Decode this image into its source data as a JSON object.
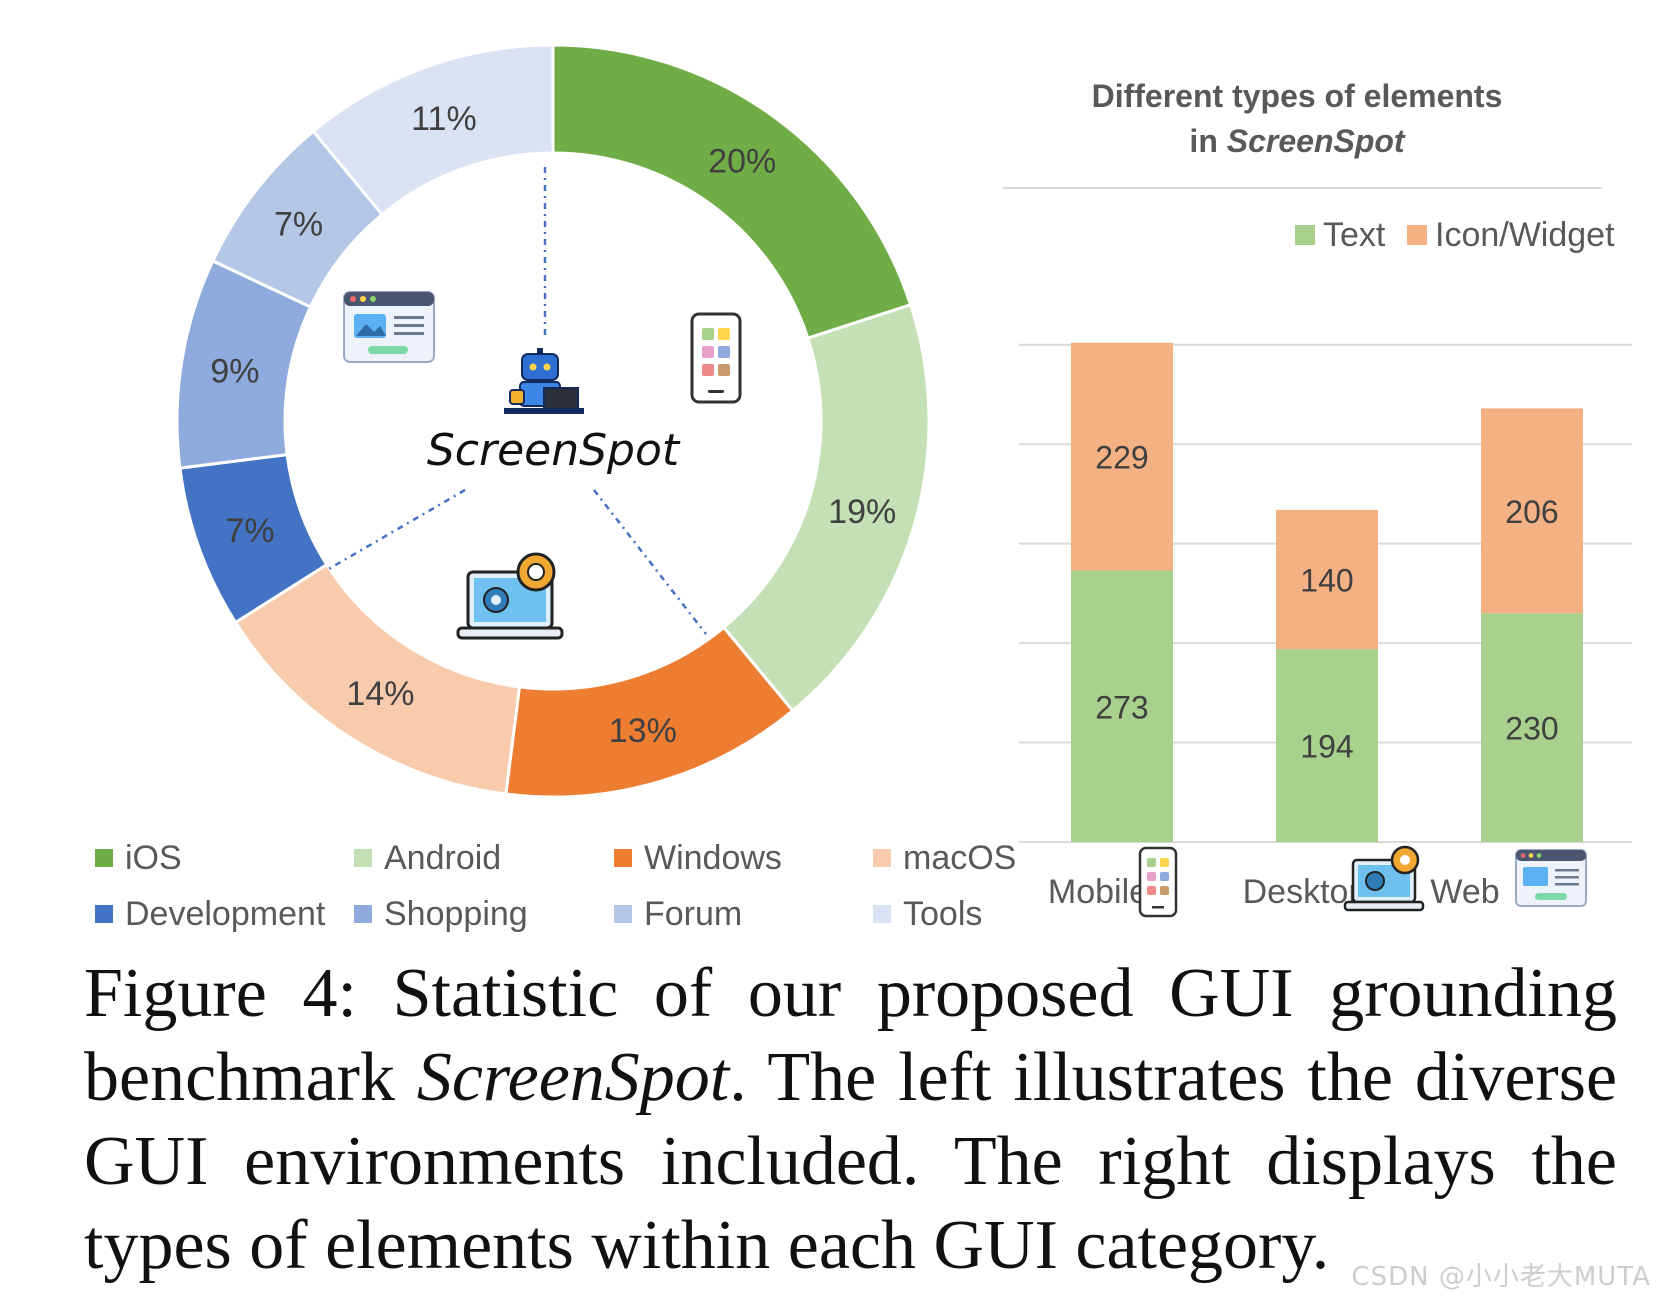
{
  "colors": {
    "iOS": "#70ad47",
    "Android": "#c5e0b4",
    "Windows": "#ed7d31",
    "macOS": "#f8cbad",
    "Development": "#4472c4",
    "Shopping": "#8faadc",
    "Forum": "#b4c7e7",
    "Tools": "#dae3f3",
    "text_bar": "#a9d18e",
    "icon_bar": "#f4b183"
  },
  "icons": {
    "center": "robot-laptop-icon",
    "mobile": "smartphone-icon",
    "desktop": "laptop-gear-icon",
    "web": "browser-window-icon"
  },
  "chart_data": [
    {
      "type": "pie",
      "donut": true,
      "center_label": "ScreenSpot",
      "categories": [
        "iOS",
        "Android",
        "Windows",
        "macOS",
        "Development",
        "Shopping",
        "Forum",
        "Tools"
      ],
      "labels": [
        "20%",
        "19%",
        "13%",
        "14%",
        "7%",
        "9%",
        "7%",
        "11%"
      ],
      "values": [
        20,
        19,
        13,
        14,
        7,
        9,
        7,
        11
      ],
      "groups": [
        "Mobile",
        "Mobile",
        "Desktop",
        "Desktop",
        "Web",
        "Web",
        "Web",
        "Web"
      ],
      "legend": "bottom"
    },
    {
      "type": "bar",
      "stacked": true,
      "title": [
        "Different types of elements",
        "in "
      ],
      "title_italic": "ScreenSpot",
      "categories": [
        "Mobile",
        "Desktop",
        "Web"
      ],
      "series": [
        {
          "name": "Text",
          "values": [
            273,
            194,
            230
          ]
        },
        {
          "name": "Icon/Widget",
          "values": [
            229,
            140,
            206
          ]
        }
      ],
      "ylim": [
        0,
        550
      ],
      "grid": true,
      "legend": "top-right"
    }
  ],
  "caption": {
    "prefix": "Figure 4:  Statistic of our proposed GUI grounding benchmark ",
    "italic": "ScreenSpot",
    "suffix": ". The left illustrates the diverse GUI environments included.  The right displays the types of elements within each GUI category."
  },
  "watermark": "CSDN @小小老大MUTA"
}
